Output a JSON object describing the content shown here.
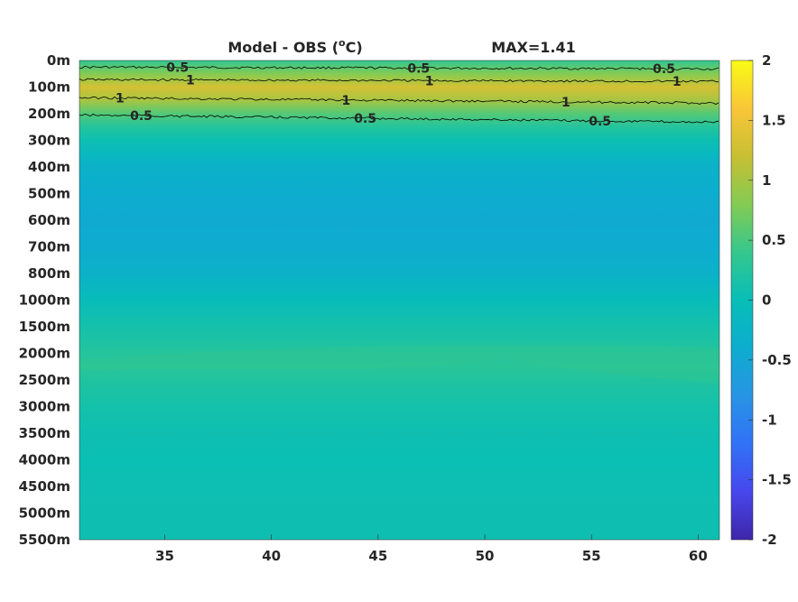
{
  "chart_data": {
    "type": "heatmap",
    "title": "Model - OBS (°C)",
    "title_parts": {
      "prefix": "Model - OBS (",
      "superscript": "o",
      "suffix": "C)"
    },
    "max_annotation": "MAX=1.41",
    "xlabel": "",
    "ylabel": "",
    "xlim": [
      31,
      61
    ],
    "x_ticks": [
      35,
      40,
      45,
      50,
      55,
      60
    ],
    "x_tick_labels": [
      "35",
      "40",
      "45",
      "50",
      "55",
      "60"
    ],
    "y_tick_labels": [
      "0m",
      "100m",
      "200m",
      "300m",
      "400m",
      "500m",
      "600m",
      "700m",
      "800m",
      "1000m",
      "1500m",
      "2000m",
      "2500m",
      "3000m",
      "3500m",
      "4000m",
      "4500m",
      "5000m",
      "5500m"
    ],
    "colorbar": {
      "colormap": "parula",
      "clim": [
        -2,
        2
      ],
      "ticks": [
        2,
        1.5,
        1,
        0.5,
        0,
        -0.5,
        -1,
        -1.5,
        -2
      ],
      "tick_labels": [
        "2",
        "1.5",
        "1",
        "0.5",
        "0",
        "-0.5",
        "-1",
        "-1.5",
        "-2"
      ]
    },
    "depth_profile_note_values": {
      "depth_index": [
        0,
        0.5,
        1,
        1.5,
        2,
        2.5,
        3,
        3.5,
        4,
        5,
        6,
        7,
        8,
        9,
        10,
        11,
        11.5,
        12,
        13,
        14,
        15,
        16,
        17,
        18
      ],
      "values": [
        0.35,
        0.8,
        1.3,
        1.0,
        0.55,
        0.25,
        0.05,
        -0.15,
        -0.3,
        -0.4,
        -0.45,
        -0.42,
        -0.3,
        -0.05,
        0.12,
        0.25,
        0.3,
        0.22,
        0.12,
        0.06,
        0.03,
        0.05,
        0.06,
        0.06
      ]
    },
    "contours": [
      {
        "level": "0.5",
        "depth_index": 0.25,
        "labels_x": [
          35.6,
          46.9,
          58.4
        ]
      },
      {
        "level": "1",
        "depth_index": 0.72,
        "labels_x": [
          36.2,
          47.4,
          59.0
        ]
      },
      {
        "level": "1",
        "depth_index": 1.4,
        "labels_x": [
          32.9,
          43.5,
          53.8
        ]
      },
      {
        "level": "0.5",
        "depth_index": 2.05,
        "labels_x": [
          33.9,
          44.4,
          55.4
        ]
      }
    ]
  }
}
